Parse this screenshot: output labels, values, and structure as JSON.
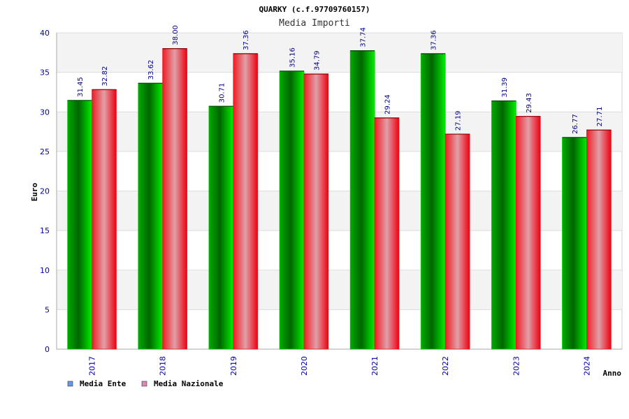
{
  "colors": {
    "ente": "#00cc00",
    "nazionale": "#ee1c24",
    "legend_ente": "#6699ee",
    "legend_nazionale": "#dd88bb"
  },
  "chart_data": {
    "type": "bar",
    "title": "QUARKY (c.f.97709760157)",
    "subtitle": "Media Importi",
    "xlabel": "Anno",
    "ylabel": "Euro",
    "ylim": [
      0,
      40
    ],
    "yticks": [
      0,
      5,
      10,
      15,
      20,
      25,
      30,
      35,
      40
    ],
    "categories": [
      "2017",
      "2018",
      "2019",
      "2020",
      "2021",
      "2022",
      "2023",
      "2024"
    ],
    "series": [
      {
        "name": "Media Ente",
        "values": [
          31.45,
          33.62,
          30.71,
          35.16,
          37.74,
          37.36,
          31.39,
          26.77
        ],
        "labels": [
          "31.45",
          "33.62",
          "30.71",
          "35.16",
          "37.74",
          "37.36",
          "31.39",
          "26.77"
        ]
      },
      {
        "name": "Media Nazionale",
        "values": [
          32.82,
          38.0,
          37.36,
          34.79,
          29.24,
          27.19,
          29.43,
          27.71
        ],
        "labels": [
          "32.82",
          "38.00",
          "37.36",
          "34.79",
          "29.24",
          "27.19",
          "29.43",
          "27.71"
        ]
      }
    ],
    "grid": true,
    "legend_position": "bottom-left"
  }
}
